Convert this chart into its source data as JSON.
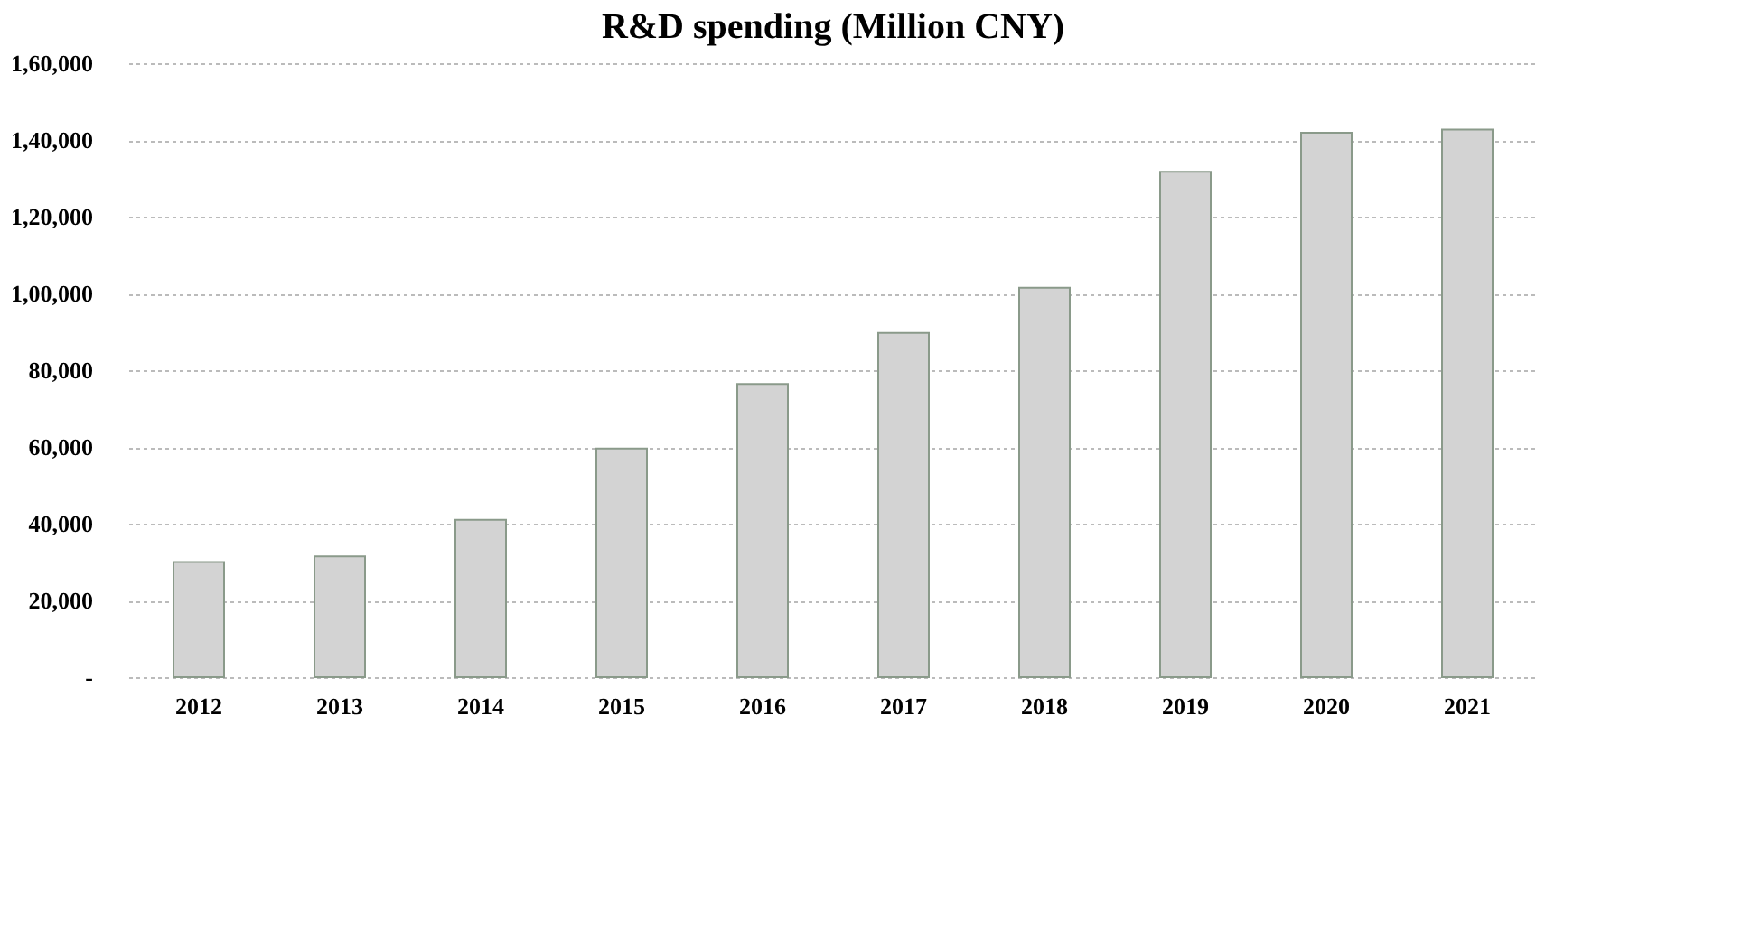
{
  "chart_data": {
    "type": "bar",
    "title": "R&D spending (Million CNY)",
    "categories": [
      "2012",
      "2013",
      "2014",
      "2015",
      "2016",
      "2017",
      "2018",
      "2019",
      "2020",
      "2021"
    ],
    "values": [
      30000,
      31500,
      41000,
      59600,
      76400,
      89700,
      101500,
      131700,
      141900,
      142700
    ],
    "color": "#d3d3d3",
    "ylim": [
      0,
      160000
    ],
    "yticks": [
      {
        "value": 0,
        "label": "-"
      },
      {
        "value": 20000,
        "label": "20,000"
      },
      {
        "value": 40000,
        "label": "40,000"
      },
      {
        "value": 60000,
        "label": "60,000"
      },
      {
        "value": 80000,
        "label": "80,000"
      },
      {
        "value": 100000,
        "label": "1,00,000"
      },
      {
        "value": 120000,
        "label": "1,20,000"
      },
      {
        "value": 140000,
        "label": "1,40,000"
      },
      {
        "value": 160000,
        "label": "1,60,000"
      }
    ],
    "grid": "y"
  }
}
